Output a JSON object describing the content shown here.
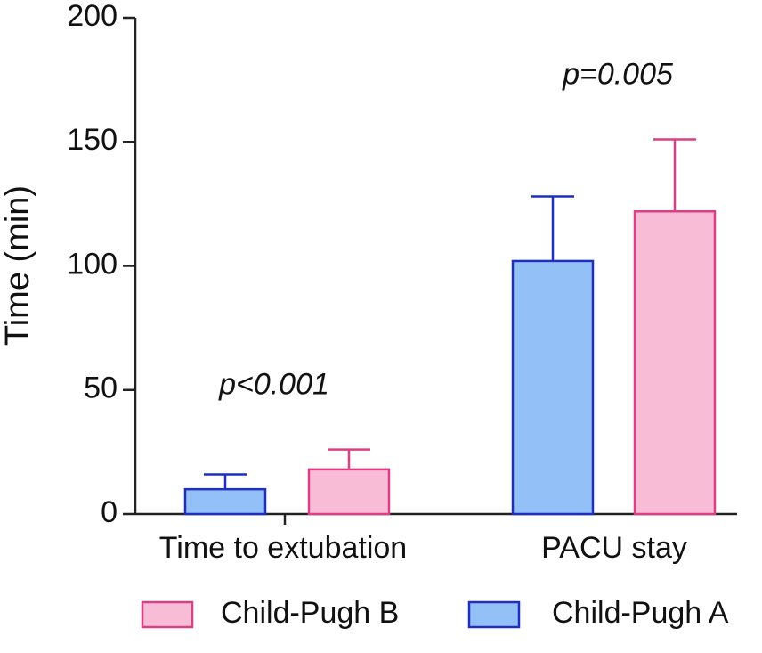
{
  "chart_data": {
    "type": "bar",
    "title": "",
    "xlabel": "",
    "ylabel": "Time (min)",
    "ylim": [
      0,
      200
    ],
    "yticks": [
      0,
      50,
      100,
      150,
      200
    ],
    "categories": [
      "Time to extubation",
      "PACU stay"
    ],
    "series": [
      {
        "name": "Child-Pugh A",
        "fill": "#92c0f7",
        "stroke": "#1f2fbf",
        "values": [
          10,
          102
        ],
        "errors": [
          6,
          26
        ]
      },
      {
        "name": "Child-Pugh B",
        "fill": "#f8bcd7",
        "stroke": "#db3f84",
        "values": [
          18,
          122
        ],
        "errors": [
          8,
          29
        ]
      }
    ],
    "annotations": [
      {
        "category": "Time to extubation",
        "text": "p<0.001"
      },
      {
        "category": "PACU stay",
        "text": "p=0.005"
      }
    ],
    "legend": {
      "position": "bottom",
      "order": [
        "Child-Pugh B",
        "Child-Pugh A"
      ]
    },
    "grid": false
  }
}
